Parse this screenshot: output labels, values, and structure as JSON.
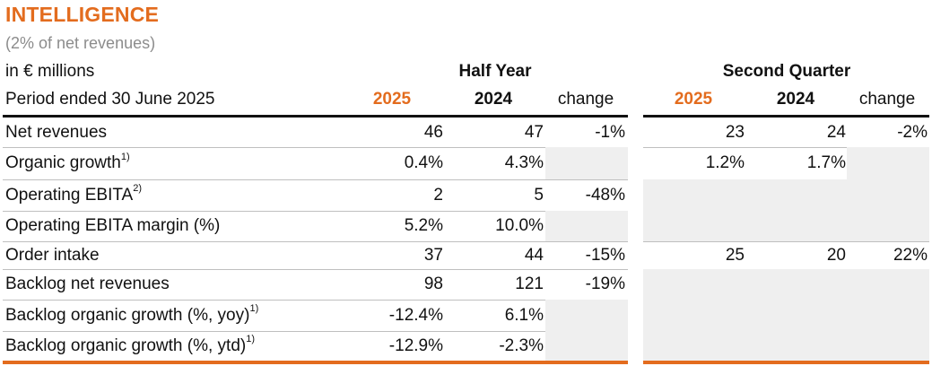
{
  "title": "INTELLIGENCE",
  "subtitle": "(2% of net revenues)",
  "unit_label": "in € millions",
  "period_label": "Period ended 30 June 2025",
  "groups": [
    {
      "label": "Half Year",
      "col_2025": "2025",
      "col_2024": "2024",
      "col_change": "change"
    },
    {
      "label": "Second Quarter",
      "col_2025": "2025",
      "col_2024": "2024",
      "col_change": "change"
    }
  ],
  "rows": [
    {
      "label": "Net revenues",
      "footnote": "",
      "hy": [
        "46",
        "47",
        "-1%"
      ],
      "q2": [
        "23",
        "24",
        "-2%"
      ]
    },
    {
      "label": "Organic growth",
      "footnote": "1)",
      "hy": [
        "0.4%",
        "4.3%",
        ""
      ],
      "q2": [
        "1.2%",
        "1.7%",
        ""
      ]
    },
    {
      "label": "Operating EBITA",
      "footnote": "2)",
      "hy": [
        "2",
        "5",
        "-48%"
      ],
      "q2": [
        "",
        "",
        ""
      ]
    },
    {
      "label": "Operating EBITA margin (%)",
      "footnote": "",
      "hy": [
        "5.2%",
        "10.0%",
        ""
      ],
      "q2": [
        "",
        "",
        ""
      ]
    },
    {
      "label": "Order intake",
      "footnote": "",
      "hy": [
        "37",
        "44",
        "-15%"
      ],
      "q2": [
        "25",
        "20",
        "22%"
      ]
    },
    {
      "label": "Backlog net revenues",
      "footnote": "",
      "hy": [
        "98",
        "121",
        "-19%"
      ],
      "q2": [
        "",
        "",
        ""
      ]
    },
    {
      "label": "Backlog organic growth (%, yoy)",
      "footnote": "1)",
      "hy": [
        "-12.4%",
        "6.1%",
        ""
      ],
      "q2": [
        "",
        "",
        ""
      ]
    },
    {
      "label": "Backlog organic growth (%, ytd)",
      "footnote": "1)",
      "hy": [
        "-12.9%",
        "-2.3%",
        ""
      ],
      "q2": [
        "",
        "",
        ""
      ]
    }
  ],
  "colors": {
    "accent": "#e36c1e",
    "shade": "#efefef",
    "rule": "#111111",
    "thin_rule": "#bfbfbf"
  }
}
